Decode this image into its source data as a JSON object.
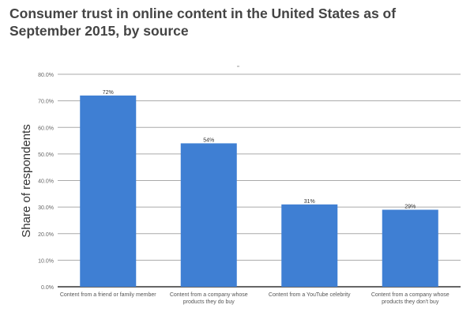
{
  "chart_data": {
    "type": "bar",
    "title": "Consumer trust in online content in the United States as of September 2015, by source",
    "xlabel": "",
    "ylabel": "Share of respondents",
    "ylim": [
      0,
      80
    ],
    "yticks": [
      0,
      10,
      20,
      30,
      40,
      50,
      60,
      70,
      80
    ],
    "ytick_labels": [
      "0.0%",
      "10.0%",
      "20.0%",
      "30.0%",
      "40.0%",
      "50.0%",
      "60.0%",
      "70.0%",
      "80.0%"
    ],
    "grid": true,
    "categories": [
      [
        "Content from a friend or family member"
      ],
      [
        "Content from a company whose",
        "products they do buy"
      ],
      [
        "Content from a YouTube celebrity"
      ],
      [
        "Content from a company whose",
        "products they don't buy"
      ]
    ],
    "values": [
      72,
      54,
      31,
      29
    ],
    "data_labels": [
      "72%",
      "54%",
      "31%",
      "29%"
    ],
    "bar_color": "#3f7fd3"
  }
}
